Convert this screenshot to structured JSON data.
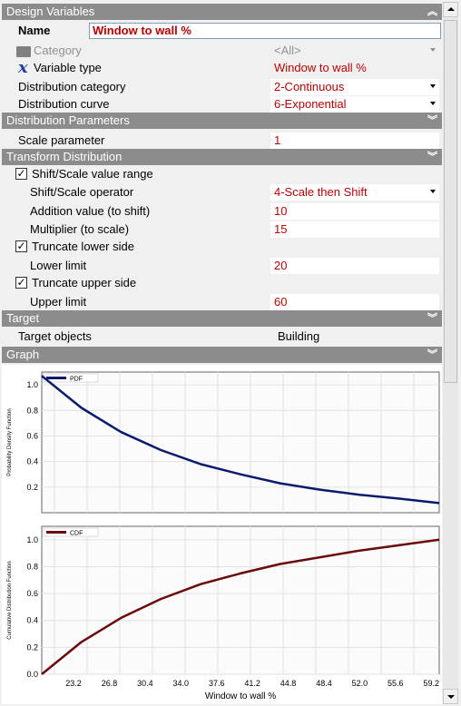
{
  "sections": {
    "design_variables": "Design Variables",
    "distribution_parameters": "Distribution Parameters",
    "transform_distribution": "Transform Distribution",
    "target": "Target",
    "graph": "Graph"
  },
  "name": {
    "label": "Name",
    "value": "Window to wall %"
  },
  "category": {
    "label": "Category",
    "value": "<All>"
  },
  "variable_type": {
    "label": "Variable type",
    "value": "Window to wall %"
  },
  "distribution_category": {
    "label": "Distribution category",
    "value": "2-Continuous"
  },
  "distribution_curve": {
    "label": "Distribution curve",
    "value": "6-Exponential"
  },
  "scale_parameter": {
    "label": "Scale parameter",
    "value": "1"
  },
  "shift_scale_range": {
    "label": "Shift/Scale value range",
    "checked": true
  },
  "shift_scale_operator": {
    "label": "Shift/Scale operator",
    "value": "4-Scale then Shift"
  },
  "addition_value": {
    "label": "Addition value (to shift)",
    "value": "10"
  },
  "multiplier": {
    "label": "Multiplier (to scale)",
    "value": "15"
  },
  "truncate_lower": {
    "label": "Truncate lower side",
    "checked": true
  },
  "lower_limit": {
    "label": "Lower limit",
    "value": "20"
  },
  "truncate_upper": {
    "label": "Truncate upper side",
    "checked": true
  },
  "upper_limit": {
    "label": "Upper limit",
    "value": "60"
  },
  "target_objects": {
    "label": "Target objects",
    "value": "Building"
  },
  "colors": {
    "header": "#8c8c8c",
    "value_red": "#c00000",
    "pdf": "#0a1a6e",
    "cdf": "#6b0a0a"
  },
  "chart_data": [
    {
      "type": "line",
      "series": [
        {
          "name": "PDF",
          "x": [
            20,
            24,
            28,
            32,
            36,
            40,
            44,
            48,
            52,
            56,
            60
          ],
          "values": [
            1.07,
            0.82,
            0.63,
            0.49,
            0.38,
            0.3,
            0.23,
            0.18,
            0.14,
            0.11,
            0.075
          ]
        }
      ],
      "ylabel": "Probability Density Function",
      "ylim": [
        0,
        1.1
      ],
      "yticks": [
        "1.0",
        "0.8",
        "0.6",
        "0.4",
        "0.2"
      ]
    },
    {
      "type": "line",
      "series": [
        {
          "name": "CDF",
          "x": [
            20,
            24,
            28,
            32,
            36,
            40,
            44,
            48,
            52,
            56,
            60
          ],
          "values": [
            0,
            0.24,
            0.42,
            0.56,
            0.67,
            0.75,
            0.82,
            0.87,
            0.92,
            0.96,
            1.0
          ]
        }
      ],
      "ylabel": "Cumulative Distribution Function",
      "xlabel": "Window to wall %",
      "ylim": [
        0,
        1.1
      ],
      "yticks": [
        "1.0",
        "0.8",
        "0.6",
        "0.4",
        "0.2",
        "0.0"
      ],
      "xticks": [
        "23.2",
        "26.8",
        "30.4",
        "34.0",
        "37.6",
        "41.2",
        "44.8",
        "48.4",
        "52.0",
        "55.6",
        "59.2"
      ],
      "xlim": [
        20,
        60
      ]
    }
  ]
}
